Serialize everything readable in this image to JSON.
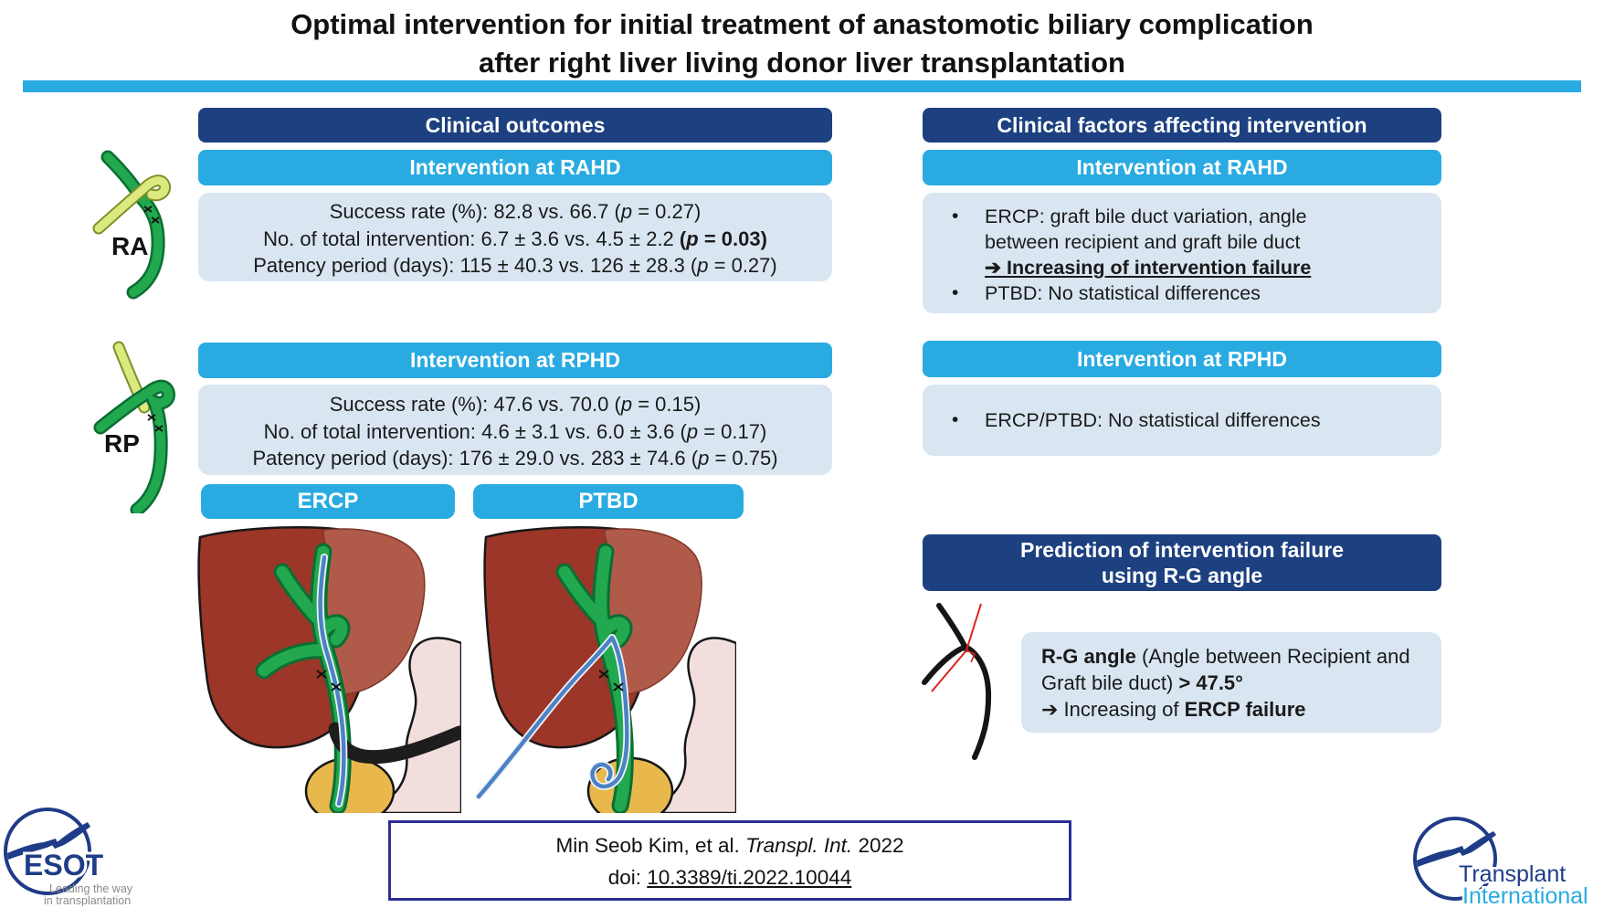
{
  "colors": {
    "navy_header": "#1c4080",
    "cyan_header": "#29abe2",
    "panel_bg": "#d9e6f2",
    "rule_cyan": "#29abe2",
    "citation_border": "#2b2f96",
    "logo_navy": "#1e3c87",
    "logo_cyan": "#29abe2",
    "duct_green": "#22a84e",
    "graft_duct_yellowgreen": "#dcea7d",
    "liver_dark": "#9c3628",
    "liver_light": "#b05b4a",
    "catheter_blue": "#4d82c4",
    "angle_red": "#e02020"
  },
  "title": {
    "line1": "Optimal intervention for initial treatment of anastomotic biliary complication",
    "line2": "after right liver living donor liver transplantation"
  },
  "left_column": {
    "header": "Clinical outcomes",
    "ra_label": "RA",
    "rp_label": "RP",
    "rahd": {
      "header": "Intervention at RAHD",
      "stats": [
        [
          {
            "t": "Success rate (%): 82.8 vs. 66.7 ("
          },
          {
            "t": "p",
            "i": 1
          },
          {
            "t": " = 0.27)"
          }
        ],
        [
          {
            "t": "No. of total intervention: 6.7 ± 3.6 vs. 4.5 ± 2.2 "
          },
          {
            "t": "(",
            "b": 1
          },
          {
            "t": "p",
            "b": 1,
            "i": 1
          },
          {
            "t": " = 0.03)",
            "b": 1
          }
        ],
        [
          {
            "t": "Patency period (days): 115 ± 40.3 vs. 126 ± 28.3 ("
          },
          {
            "t": "p",
            "i": 1
          },
          {
            "t": " = 0.27)"
          }
        ]
      ]
    },
    "rphd": {
      "header": "Intervention at RPHD",
      "stats": [
        [
          {
            "t": "Success rate (%): 47.6 vs. 70.0 ("
          },
          {
            "t": "p",
            "i": 1
          },
          {
            "t": " = 0.15)"
          }
        ],
        [
          {
            "t": "No. of total intervention: 4.6 ± 3.1 vs. 6.0 ± 3.6 ("
          },
          {
            "t": "p",
            "i": 1
          },
          {
            "t": " = 0.17)"
          }
        ],
        [
          {
            "t": "Patency period (days): 176 ± 29.0 vs. 283 ± 74.6 ("
          },
          {
            "t": "p",
            "i": 1
          },
          {
            "t": " = 0.75)"
          }
        ]
      ]
    },
    "ercp_label": "ERCP",
    "ptbd_label": "PTBD"
  },
  "right_column": {
    "header": "Clinical factors affecting intervention",
    "rahd": {
      "header": "Intervention at RAHD",
      "bullet": "•",
      "item1": [
        {
          "t": "ERCP: graft bile duct variation, angle between recipient and graft bile duct"
        }
      ],
      "arrow_line": [
        {
          "t": "➔ Increasing of intervention failure",
          "b": 1,
          "u": 1
        }
      ],
      "item2": [
        {
          "t": "PTBD: No statistical differences"
        }
      ]
    },
    "rphd": {
      "header": "Intervention at RPHD",
      "bullet": "•",
      "item1": [
        {
          "t": "ERCP/PTBD: No statistical differences"
        }
      ]
    },
    "prediction": {
      "header_line1": "Prediction of intervention failure",
      "header_line2": "using R-G angle",
      "body_line1": [
        {
          "t": "R-G angle",
          "b": 1
        },
        {
          "t": " (Angle between Recipient and Graft bile duct) "
        },
        {
          "t": "> 47.5°",
          "b": 1
        }
      ],
      "body_line2": [
        {
          "t": "➔ Increasing of "
        },
        {
          "t": "ERCP failure",
          "b": 1
        }
      ]
    }
  },
  "citation": {
    "line1": [
      {
        "t": "Min Seob Kim, et al. "
      },
      {
        "t": "Transpl. Int.",
        "i": 1
      },
      {
        "t": " 2022"
      }
    ],
    "line2": [
      {
        "t": "doi: "
      },
      {
        "t": "10.3389/ti.2022.10044",
        "u": 1
      }
    ]
  },
  "logos": {
    "esot": {
      "name": "ESOT",
      "tagline1": "Leading the way",
      "tagline2": "in transplantation"
    },
    "transplant_international": {
      "line1": "Transplant",
      "line2": "International"
    }
  }
}
